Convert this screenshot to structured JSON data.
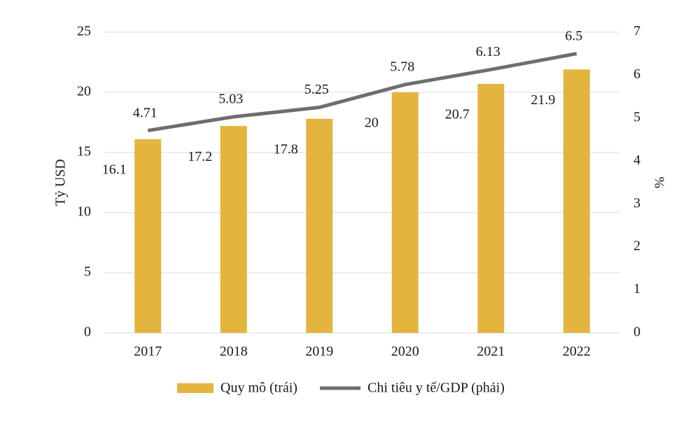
{
  "chart_data": {
    "type": "bar",
    "categories": [
      "2017",
      "2018",
      "2019",
      "2020",
      "2021",
      "2022"
    ],
    "series": [
      {
        "name": "Quy mô (trái)",
        "color": "#e3b53f",
        "values": [
          16.1,
          17.2,
          17.8,
          20,
          20.7,
          21.9
        ]
      },
      {
        "name": "Chi tiêu y tế/GDP (phải)",
        "color": "#6e6e6e",
        "type": "line",
        "axis": "y2",
        "values": [
          4.71,
          5.03,
          5.25,
          5.78,
          6.13,
          6.5
        ]
      }
    ],
    "ylabel": "Tỷ USD",
    "y2label": "%",
    "ylim": [
      0,
      25
    ],
    "yticks": [
      0,
      5,
      10,
      15,
      20,
      25
    ],
    "y2lim": [
      0,
      7
    ],
    "y2ticks": [
      0,
      1,
      2,
      3,
      4,
      5,
      6,
      7
    ],
    "grid": true,
    "legend": "bottom"
  }
}
